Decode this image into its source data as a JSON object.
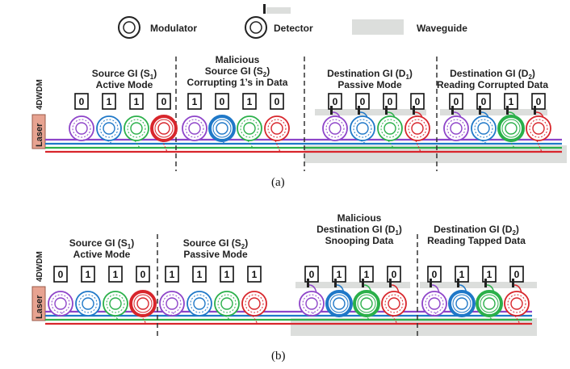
{
  "legend": {
    "modulator": "Modulator",
    "detector": "Detector",
    "waveguide": "Waveguide"
  },
  "colors": {
    "purple": "#8e44c9",
    "blue": "#1f78c8",
    "green": "#2bb04a",
    "red": "#d8262c",
    "waveguide": "#dcdedc",
    "laser": "#e7a391"
  },
  "panel_a": {
    "caption": "(a)",
    "laser_label": "Laser",
    "wdm_label": "4DWDM",
    "groups": [
      {
        "lines": [
          {
            "text": "Source GI (S",
            "sub": "1",
            "tail": ")"
          },
          {
            "text": "Active Mode"
          }
        ],
        "bits": [
          "0",
          "1",
          "1",
          "0"
        ],
        "has_detectors": false,
        "highlight": [
          3
        ]
      },
      {
        "lines": [
          {
            "text": "Malicious"
          },
          {
            "text": "Source GI (S",
            "sub": "2",
            "tail": ")"
          },
          {
            "text": "Corrupting 1’s in Data"
          }
        ],
        "bits": [
          "1",
          "0",
          "1",
          "0"
        ],
        "has_detectors": false,
        "highlight": [
          1
        ]
      },
      {
        "lines": [
          {
            "text": "Destination GI (D",
            "sub": "1",
            "tail": ")"
          },
          {
            "text": "Passive Mode"
          }
        ],
        "bits": [
          "0",
          "0",
          "0",
          "0"
        ],
        "has_detectors": true,
        "highlight": []
      },
      {
        "lines": [
          {
            "text": "Destination GI (D",
            "sub": "2",
            "tail": ")"
          },
          {
            "text": "Reading Corrupted Data"
          }
        ],
        "bits": [
          "0",
          "0",
          "1",
          "0"
        ],
        "has_detectors": true,
        "highlight": [
          2
        ]
      }
    ]
  },
  "panel_b": {
    "caption": "(b)",
    "laser_label": "Laser",
    "wdm_label": "4DWDM",
    "groups": [
      {
        "lines": [
          {
            "text": "Source GI (S",
            "sub": "1",
            "tail": ")"
          },
          {
            "text": "Active Mode"
          }
        ],
        "bits": [
          "0",
          "1",
          "1",
          "0"
        ],
        "has_detectors": false,
        "highlight": [
          3
        ]
      },
      {
        "lines": [
          {
            "text": "Source GI (S",
            "sub": "2",
            "tail": ")"
          },
          {
            "text": "Passive Mode"
          }
        ],
        "bits": [
          "1",
          "1",
          "1",
          "1"
        ],
        "has_detectors": false,
        "highlight": []
      },
      {
        "lines": [
          {
            "text": "Malicious"
          },
          {
            "text": "Destination GI (D",
            "sub": "1",
            "tail": ")"
          },
          {
            "text": "Snooping Data"
          }
        ],
        "bits": [
          "0",
          "1",
          "1",
          "0"
        ],
        "has_detectors": true,
        "highlight": [
          1,
          2
        ]
      },
      {
        "lines": [
          {
            "text": "Destination GI (D",
            "sub": "2",
            "tail": ")"
          },
          {
            "text": "Reading Tapped Data"
          }
        ],
        "bits": [
          "0",
          "1",
          "1",
          "0"
        ],
        "has_detectors": true,
        "highlight": [
          1,
          2
        ]
      }
    ]
  }
}
